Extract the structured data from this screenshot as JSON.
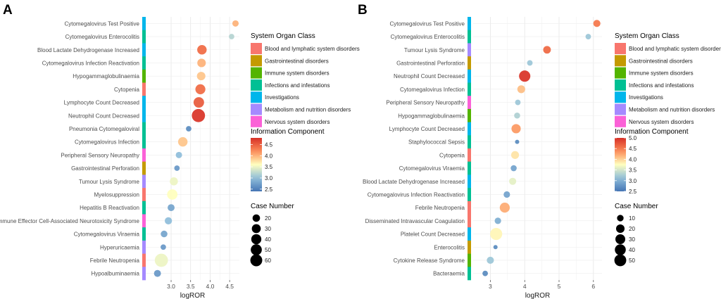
{
  "chart_data": [
    {
      "panel_label": "A",
      "type": "scatter",
      "xlabel": "logROR",
      "xlim": [
        2.35,
        4.75
      ],
      "xticks": [
        3.0,
        3.5,
        4.0,
        4.5
      ],
      "xtick_labels": [
        "3.0",
        "3.5",
        "4.0",
        "4.5"
      ],
      "ic_range": [
        2.4,
        4.8
      ],
      "case_range": [
        10,
        65
      ],
      "points": [
        {
          "label": "Cytomegalovirus Test Positive",
          "soc": "Investigations",
          "logROR": 4.65,
          "ic": 4.0,
          "cases": 13
        },
        {
          "label": "Cytomegalovirus Enterocolitis",
          "soc": "Infections and infestations",
          "logROR": 4.55,
          "ic": 3.2,
          "cases": 11
        },
        {
          "label": "Blood Lactate Dehydrogenase Increased",
          "soc": "Investigations",
          "logROR": 3.79,
          "ic": 4.4,
          "cases": 28
        },
        {
          "label": "Cytomegalovirus Infection Reactivation",
          "soc": "Infections and infestations",
          "logROR": 3.78,
          "ic": 4.0,
          "cases": 22
        },
        {
          "label": "Hypogammaglobulinaemia",
          "soc": "Immune system disorders",
          "logROR": 3.77,
          "ic": 3.9,
          "cases": 22
        },
        {
          "label": "Cytopenia",
          "soc": "Blood and lymphatic system disorders",
          "logROR": 3.75,
          "ic": 4.4,
          "cases": 32
        },
        {
          "label": "Lymphocyte Count Decreased",
          "soc": "Investigations",
          "logROR": 3.71,
          "ic": 4.5,
          "cases": 36
        },
        {
          "label": "Neutrophil Count Decreased",
          "soc": "Investigations",
          "logROR": 3.7,
          "ic": 4.75,
          "cases": 63
        },
        {
          "label": "Pneumonia Cytomegaloviral",
          "soc": "Infections and infestations",
          "logROR": 3.45,
          "ic": 2.6,
          "cases": 11
        },
        {
          "label": "Cytomegalovirus Infection",
          "soc": "Infections and infestations",
          "logROR": 3.3,
          "ic": 3.9,
          "cases": 28
        },
        {
          "label": "Peripheral Sensory Neuropathy",
          "soc": "Nervous system disorders",
          "logROR": 3.2,
          "ic": 3.0,
          "cases": 13
        },
        {
          "label": "Gastrointestinal Perforation",
          "soc": "Gastrointestinal disorders",
          "logROR": 3.15,
          "ic": 2.7,
          "cases": 11
        },
        {
          "label": "Tumour Lysis Syndrome",
          "soc": "Metabolism and nutrition disorders",
          "logROR": 3.07,
          "ic": 3.5,
          "cases": 20
        },
        {
          "label": "Myelosuppression",
          "soc": "Blood and lymphatic system disorders",
          "logROR": 3.03,
          "ic": 3.6,
          "cases": 35
        },
        {
          "label": "Hepatitis B Reactivation",
          "soc": "Infections and infestations",
          "logROR": 3.0,
          "ic": 2.8,
          "cases": 15
        },
        {
          "label": "Immune Effector Cell-Associated Neurotoxicity Syndrome",
          "soc": "Nervous system disorders",
          "logROR": 2.93,
          "ic": 3.0,
          "cases": 16
        },
        {
          "label": "Cytomegalovirus Viraemia",
          "soc": "Infections and infestations",
          "logROR": 2.82,
          "ic": 2.8,
          "cases": 14
        },
        {
          "label": "Hyperuricaemia",
          "soc": "Metabolism and nutrition disorders",
          "logROR": 2.8,
          "ic": 2.7,
          "cases": 11
        },
        {
          "label": "Febrile Neutropenia",
          "soc": "Blood and lymphatic system disorders",
          "logROR": 2.75,
          "ic": 3.5,
          "cases": 63
        },
        {
          "label": "Hypoalbuminaemia",
          "soc": "Metabolism and nutrition disorders",
          "logROR": 2.65,
          "ic": 2.7,
          "cases": 15
        }
      ],
      "legend_soc": {
        "title": "System Organ Class",
        "items": [
          {
            "label": "Blood and lymphatic system disorders",
            "color": "#f8766d"
          },
          {
            "label": "Gastrointestinal disorders",
            "color": "#c49a00"
          },
          {
            "label": "Immune system disorders",
            "color": "#53b400"
          },
          {
            "label": "Infections and infestations",
            "color": "#00c094"
          },
          {
            "label": "Investigations",
            "color": "#00b6eb"
          },
          {
            "label": "Metabolism and nutrition disorders",
            "color": "#a58aff"
          },
          {
            "label": "Nervous system disorders",
            "color": "#fb61d7"
          }
        ]
      },
      "legend_ic": {
        "title": "Information Component",
        "ticks": [
          4.5,
          4.0,
          3.5,
          3.0,
          2.5
        ],
        "tick_labels": [
          "4.5",
          "4.0",
          "3.5",
          "3.0",
          "2.5"
        ]
      },
      "legend_size": {
        "title": "Case Number",
        "values": [
          20,
          30,
          40,
          50,
          60
        ],
        "labels": [
          "20",
          "30",
          "40",
          "50",
          "60"
        ]
      }
    },
    {
      "panel_label": "B",
      "type": "scatter",
      "xlabel": "logROR",
      "xlim": [
        2.5,
        6.25
      ],
      "xticks": [
        3,
        4,
        5,
        6
      ],
      "xtick_labels": [
        "3",
        "4",
        "5",
        "6"
      ],
      "ic_range": [
        2.5,
        5.0
      ],
      "case_range": [
        5,
        55
      ],
      "points": [
        {
          "label": "Cytomegalovirus Test Positive",
          "soc": "Investigations",
          "logROR": 6.1,
          "ic": 4.5,
          "cases": 10
        },
        {
          "label": "Cytomegalovirus Enterocolitis",
          "soc": "Infections and infestations",
          "logROR": 5.85,
          "ic": 3.2,
          "cases": 6
        },
        {
          "label": "Tumour Lysis Syndrome",
          "soc": "Metabolism and nutrition disorders",
          "logROR": 4.65,
          "ic": 4.6,
          "cases": 12
        },
        {
          "label": "Gastrointestinal Perforation",
          "soc": "Gastrointestinal disorders",
          "logROR": 4.15,
          "ic": 3.2,
          "cases": 6
        },
        {
          "label": "Neutrophil Count Decreased",
          "soc": "Investigations",
          "logROR": 4.0,
          "ic": 4.95,
          "cases": 35
        },
        {
          "label": "Cytomegalovirus Infection",
          "soc": "Infections and infestations",
          "logROR": 3.9,
          "ic": 4.1,
          "cases": 13
        },
        {
          "label": "Peripheral Sensory Neuropathy",
          "soc": "Nervous system disorders",
          "logROR": 3.8,
          "ic": 3.2,
          "cases": 6
        },
        {
          "label": "Hypogammaglobulinaemia",
          "soc": "Immune system disorders",
          "logROR": 3.78,
          "ic": 3.3,
          "cases": 7
        },
        {
          "label": "Lymphocyte Count Decreased",
          "soc": "Investigations",
          "logROR": 3.75,
          "ic": 4.3,
          "cases": 20
        },
        {
          "label": "Staphylococcal Sepsis",
          "soc": "Infections and infestations",
          "logROR": 3.78,
          "ic": 2.7,
          "cases": 4
        },
        {
          "label": "Cytopenia",
          "soc": "Blood and lymphatic system disorders",
          "logROR": 3.72,
          "ic": 3.9,
          "cases": 13
        },
        {
          "label": "Cytomegalovirus Viraemia",
          "soc": "Infections and infestations",
          "logROR": 3.68,
          "ic": 2.9,
          "cases": 7
        },
        {
          "label": "Blood Lactate Dehydrogenase Increased",
          "soc": "Investigations",
          "logROR": 3.65,
          "ic": 3.6,
          "cases": 10
        },
        {
          "label": "Cytomegalovirus Infection Reactivation",
          "soc": "Infections and infestations",
          "logROR": 3.48,
          "ic": 2.9,
          "cases": 8
        },
        {
          "label": "Febrile Neutropenia",
          "soc": "Blood and lymphatic system disorders",
          "logROR": 3.42,
          "ic": 4.2,
          "cases": 25
        },
        {
          "label": "Disseminated Intravascular Coagulation",
          "soc": "Blood and lymphatic system disorders",
          "logROR": 3.22,
          "ic": 3.0,
          "cases": 8
        },
        {
          "label": "Platelet Count Decreased",
          "soc": "Investigations",
          "logROR": 3.17,
          "ic": 3.8,
          "cases": 42
        },
        {
          "label": "Enterocolitis",
          "soc": "Gastrointestinal disorders",
          "logROR": 3.15,
          "ic": 2.7,
          "cases": 4
        },
        {
          "label": "Cytokine Release Syndrome",
          "soc": "Immune system disorders",
          "logROR": 3.0,
          "ic": 3.2,
          "cases": 10
        },
        {
          "label": "Bacteraemia",
          "soc": "Infections and infestations",
          "logROR": 2.85,
          "ic": 2.7,
          "cases": 6
        }
      ],
      "legend_soc": {
        "title": "System Organ Class",
        "items": [
          {
            "label": "Blood and lymphatic system disorders",
            "color": "#f8766d"
          },
          {
            "label": "Gastrointestinal disorders",
            "color": "#c49a00"
          },
          {
            "label": "Immune system disorders",
            "color": "#53b400"
          },
          {
            "label": "Infections and infestations",
            "color": "#00c094"
          },
          {
            "label": "Investigations",
            "color": "#00b6eb"
          },
          {
            "label": "Metabolism and nutrition disorders",
            "color": "#a58aff"
          },
          {
            "label": "Nervous system disorders",
            "color": "#fb61d7"
          }
        ]
      },
      "legend_ic": {
        "title": "Information Component",
        "ticks": [
          5.0,
          4.5,
          4.0,
          3.5,
          3.0,
          2.5
        ],
        "tick_labels": [
          "5.0",
          "4.5",
          "4.0",
          "3.5",
          "3.0",
          "2.5"
        ]
      },
      "legend_size": {
        "title": "Case Number",
        "values": [
          10,
          20,
          30,
          40,
          50
        ],
        "labels": [
          "10",
          "20",
          "30",
          "40",
          "50"
        ]
      }
    }
  ]
}
